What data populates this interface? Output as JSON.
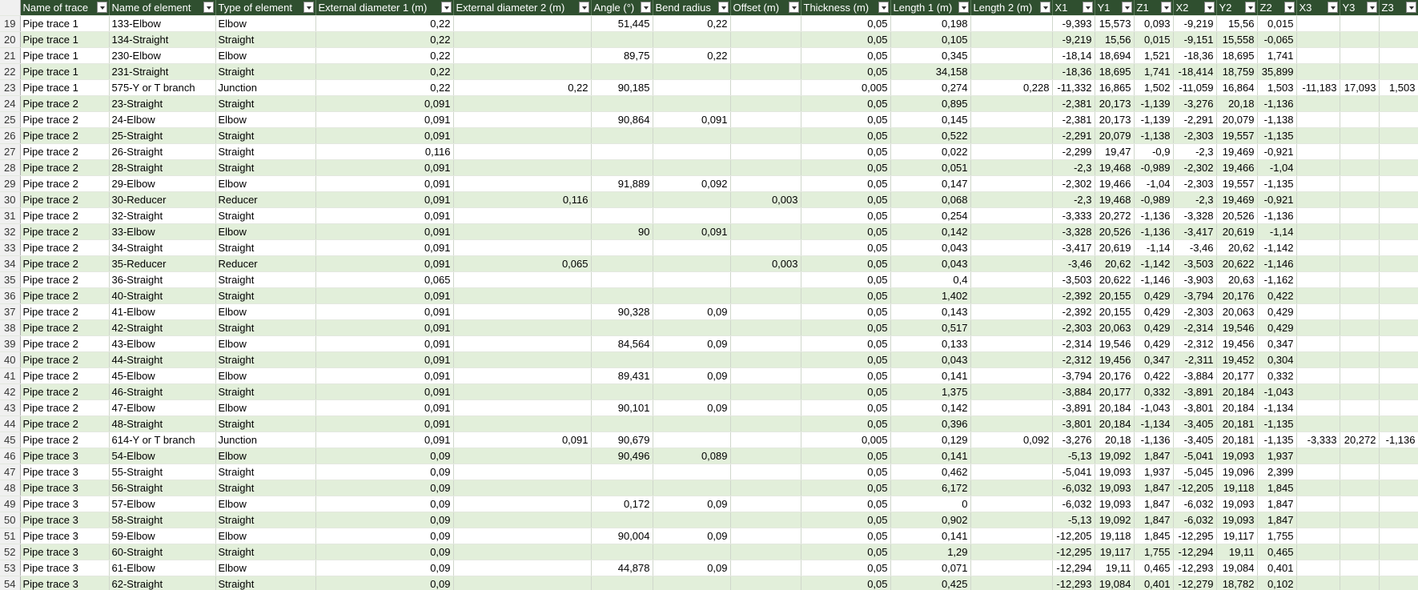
{
  "table": {
    "columns": [
      "Name of trace",
      "Name of element",
      "Type of element",
      "External diameter 1 (m)",
      "External diameter 2 (m)",
      "Angle (°)",
      "Bend radius",
      "Offset (m)",
      "Thickness (m)",
      "Length 1 (m)",
      "Length 2 (m)",
      "X1",
      "Y1",
      "Z1",
      "X2",
      "Y2",
      "Z2",
      "X3",
      "Y3",
      "Z3"
    ],
    "rows": [
      [
        "19",
        "Pipe trace 1",
        "133-Elbow",
        "Elbow",
        "0,22",
        null,
        "51,445",
        "0,22",
        null,
        "0,05",
        "0,198",
        null,
        "-9,393",
        "15,573",
        "0,093",
        "-9,219",
        "15,56",
        "0,015",
        null,
        null,
        null
      ],
      [
        "20",
        "Pipe trace 1",
        "134-Straight",
        "Straight",
        "0,22",
        null,
        null,
        null,
        null,
        "0,05",
        "0,105",
        null,
        "-9,219",
        "15,56",
        "0,015",
        "-9,151",
        "15,558",
        "-0,065",
        null,
        null,
        null
      ],
      [
        "21",
        "Pipe trace 1",
        "230-Elbow",
        "Elbow",
        "0,22",
        null,
        "89,75",
        "0,22",
        null,
        "0,05",
        "0,345",
        null,
        "-18,14",
        "18,694",
        "1,521",
        "-18,36",
        "18,695",
        "1,741",
        null,
        null,
        null
      ],
      [
        "22",
        "Pipe trace 1",
        "231-Straight",
        "Straight",
        "0,22",
        null,
        null,
        null,
        null,
        "0,05",
        "34,158",
        null,
        "-18,36",
        "18,695",
        "1,741",
        "-18,414",
        "18,759",
        "35,899",
        null,
        null,
        null
      ],
      [
        "23",
        "Pipe trace 1",
        "575-Y or T branch",
        "Junction",
        "0,22",
        "0,22",
        "90,185",
        null,
        null,
        "0,005",
        "0,274",
        "0,228",
        "-11,332",
        "16,865",
        "1,502",
        "-11,059",
        "16,864",
        "1,503",
        "-11,183",
        "17,093",
        "1,503"
      ],
      [
        "24",
        "Pipe trace 2",
        "23-Straight",
        "Straight",
        "0,091",
        null,
        null,
        null,
        null,
        "0,05",
        "0,895",
        null,
        "-2,381",
        "20,173",
        "-1,139",
        "-3,276",
        "20,18",
        "-1,136",
        null,
        null,
        null
      ],
      [
        "25",
        "Pipe trace 2",
        "24-Elbow",
        "Elbow",
        "0,091",
        null,
        "90,864",
        "0,091",
        null,
        "0,05",
        "0,145",
        null,
        "-2,381",
        "20,173",
        "-1,139",
        "-2,291",
        "20,079",
        "-1,138",
        null,
        null,
        null
      ],
      [
        "26",
        "Pipe trace 2",
        "25-Straight",
        "Straight",
        "0,091",
        null,
        null,
        null,
        null,
        "0,05",
        "0,522",
        null,
        "-2,291",
        "20,079",
        "-1,138",
        "-2,303",
        "19,557",
        "-1,135",
        null,
        null,
        null
      ],
      [
        "27",
        "Pipe trace 2",
        "26-Straight",
        "Straight",
        "0,116",
        null,
        null,
        null,
        null,
        "0,05",
        "0,022",
        null,
        "-2,299",
        "19,47",
        "-0,9",
        "-2,3",
        "19,469",
        "-0,921",
        null,
        null,
        null
      ],
      [
        "28",
        "Pipe trace 2",
        "28-Straight",
        "Straight",
        "0,091",
        null,
        null,
        null,
        null,
        "0,05",
        "0,051",
        null,
        "-2,3",
        "19,468",
        "-0,989",
        "-2,302",
        "19,466",
        "-1,04",
        null,
        null,
        null
      ],
      [
        "29",
        "Pipe trace 2",
        "29-Elbow",
        "Elbow",
        "0,091",
        null,
        "91,889",
        "0,092",
        null,
        "0,05",
        "0,147",
        null,
        "-2,302",
        "19,466",
        "-1,04",
        "-2,303",
        "19,557",
        "-1,135",
        null,
        null,
        null
      ],
      [
        "30",
        "Pipe trace 2",
        "30-Reducer",
        "Reducer",
        "0,091",
        "0,116",
        null,
        null,
        "0,003",
        "0,05",
        "0,068",
        null,
        "-2,3",
        "19,468",
        "-0,989",
        "-2,3",
        "19,469",
        "-0,921",
        null,
        null,
        null
      ],
      [
        "31",
        "Pipe trace 2",
        "32-Straight",
        "Straight",
        "0,091",
        null,
        null,
        null,
        null,
        "0,05",
        "0,254",
        null,
        "-3,333",
        "20,272",
        "-1,136",
        "-3,328",
        "20,526",
        "-1,136",
        null,
        null,
        null
      ],
      [
        "32",
        "Pipe trace 2",
        "33-Elbow",
        "Elbow",
        "0,091",
        null,
        "90",
        "0,091",
        null,
        "0,05",
        "0,142",
        null,
        "-3,328",
        "20,526",
        "-1,136",
        "-3,417",
        "20,619",
        "-1,14",
        null,
        null,
        null
      ],
      [
        "33",
        "Pipe trace 2",
        "34-Straight",
        "Straight",
        "0,091",
        null,
        null,
        null,
        null,
        "0,05",
        "0,043",
        null,
        "-3,417",
        "20,619",
        "-1,14",
        "-3,46",
        "20,62",
        "-1,142",
        null,
        null,
        null
      ],
      [
        "34",
        "Pipe trace 2",
        "35-Reducer",
        "Reducer",
        "0,091",
        "0,065",
        null,
        null,
        "0,003",
        "0,05",
        "0,043",
        null,
        "-3,46",
        "20,62",
        "-1,142",
        "-3,503",
        "20,622",
        "-1,146",
        null,
        null,
        null
      ],
      [
        "35",
        "Pipe trace 2",
        "36-Straight",
        "Straight",
        "0,065",
        null,
        null,
        null,
        null,
        "0,05",
        "0,4",
        null,
        "-3,503",
        "20,622",
        "-1,146",
        "-3,903",
        "20,63",
        "-1,162",
        null,
        null,
        null
      ],
      [
        "36",
        "Pipe trace 2",
        "40-Straight",
        "Straight",
        "0,091",
        null,
        null,
        null,
        null,
        "0,05",
        "1,402",
        null,
        "-2,392",
        "20,155",
        "0,429",
        "-3,794",
        "20,176",
        "0,422",
        null,
        null,
        null
      ],
      [
        "37",
        "Pipe trace 2",
        "41-Elbow",
        "Elbow",
        "0,091",
        null,
        "90,328",
        "0,09",
        null,
        "0,05",
        "0,143",
        null,
        "-2,392",
        "20,155",
        "0,429",
        "-2,303",
        "20,063",
        "0,429",
        null,
        null,
        null
      ],
      [
        "38",
        "Pipe trace 2",
        "42-Straight",
        "Straight",
        "0,091",
        null,
        null,
        null,
        null,
        "0,05",
        "0,517",
        null,
        "-2,303",
        "20,063",
        "0,429",
        "-2,314",
        "19,546",
        "0,429",
        null,
        null,
        null
      ],
      [
        "39",
        "Pipe trace 2",
        "43-Elbow",
        "Elbow",
        "0,091",
        null,
        "84,564",
        "0,09",
        null,
        "0,05",
        "0,133",
        null,
        "-2,314",
        "19,546",
        "0,429",
        "-2,312",
        "19,456",
        "0,347",
        null,
        null,
        null
      ],
      [
        "40",
        "Pipe trace 2",
        "44-Straight",
        "Straight",
        "0,091",
        null,
        null,
        null,
        null,
        "0,05",
        "0,043",
        null,
        "-2,312",
        "19,456",
        "0,347",
        "-2,311",
        "19,452",
        "0,304",
        null,
        null,
        null
      ],
      [
        "41",
        "Pipe trace 2",
        "45-Elbow",
        "Elbow",
        "0,091",
        null,
        "89,431",
        "0,09",
        null,
        "0,05",
        "0,141",
        null,
        "-3,794",
        "20,176",
        "0,422",
        "-3,884",
        "20,177",
        "0,332",
        null,
        null,
        null
      ],
      [
        "42",
        "Pipe trace 2",
        "46-Straight",
        "Straight",
        "0,091",
        null,
        null,
        null,
        null,
        "0,05",
        "1,375",
        null,
        "-3,884",
        "20,177",
        "0,332",
        "-3,891",
        "20,184",
        "-1,043",
        null,
        null,
        null
      ],
      [
        "43",
        "Pipe trace 2",
        "47-Elbow",
        "Elbow",
        "0,091",
        null,
        "90,101",
        "0,09",
        null,
        "0,05",
        "0,142",
        null,
        "-3,891",
        "20,184",
        "-1,043",
        "-3,801",
        "20,184",
        "-1,134",
        null,
        null,
        null
      ],
      [
        "44",
        "Pipe trace 2",
        "48-Straight",
        "Straight",
        "0,091",
        null,
        null,
        null,
        null,
        "0,05",
        "0,396",
        null,
        "-3,801",
        "20,184",
        "-1,134",
        "-3,405",
        "20,181",
        "-1,135",
        null,
        null,
        null
      ],
      [
        "45",
        "Pipe trace 2",
        "614-Y or T branch",
        "Junction",
        "0,091",
        "0,091",
        "90,679",
        null,
        null,
        "0,005",
        "0,129",
        "0,092",
        "-3,276",
        "20,18",
        "-1,136",
        "-3,405",
        "20,181",
        "-1,135",
        "-3,333",
        "20,272",
        "-1,136"
      ],
      [
        "46",
        "Pipe trace 3",
        "54-Elbow",
        "Elbow",
        "0,09",
        null,
        "90,496",
        "0,089",
        null,
        "0,05",
        "0,141",
        null,
        "-5,13",
        "19,092",
        "1,847",
        "-5,041",
        "19,093",
        "1,937",
        null,
        null,
        null
      ],
      [
        "47",
        "Pipe trace 3",
        "55-Straight",
        "Straight",
        "0,09",
        null,
        null,
        null,
        null,
        "0,05",
        "0,462",
        null,
        "-5,041",
        "19,093",
        "1,937",
        "-5,045",
        "19,096",
        "2,399",
        null,
        null,
        null
      ],
      [
        "48",
        "Pipe trace 3",
        "56-Straight",
        "Straight",
        "0,09",
        null,
        null,
        null,
        null,
        "0,05",
        "6,172",
        null,
        "-6,032",
        "19,093",
        "1,847",
        "-12,205",
        "19,118",
        "1,845",
        null,
        null,
        null
      ],
      [
        "49",
        "Pipe trace 3",
        "57-Elbow",
        "Elbow",
        "0,09",
        null,
        "0,172",
        "0,09",
        null,
        "0,05",
        "0",
        null,
        "-6,032",
        "19,093",
        "1,847",
        "-6,032",
        "19,093",
        "1,847",
        null,
        null,
        null
      ],
      [
        "50",
        "Pipe trace 3",
        "58-Straight",
        "Straight",
        "0,09",
        null,
        null,
        null,
        null,
        "0,05",
        "0,902",
        null,
        "-5,13",
        "19,092",
        "1,847",
        "-6,032",
        "19,093",
        "1,847",
        null,
        null,
        null
      ],
      [
        "51",
        "Pipe trace 3",
        "59-Elbow",
        "Elbow",
        "0,09",
        null,
        "90,004",
        "0,09",
        null,
        "0,05",
        "0,141",
        null,
        "-12,205",
        "19,118",
        "1,845",
        "-12,295",
        "19,117",
        "1,755",
        null,
        null,
        null
      ],
      [
        "52",
        "Pipe trace 3",
        "60-Straight",
        "Straight",
        "0,09",
        null,
        null,
        null,
        null,
        "0,05",
        "1,29",
        null,
        "-12,295",
        "19,117",
        "1,755",
        "-12,294",
        "19,11",
        "0,465",
        null,
        null,
        null
      ],
      [
        "53",
        "Pipe trace 3",
        "61-Elbow",
        "Elbow",
        "0,09",
        null,
        "44,878",
        "0,09",
        null,
        "0,05",
        "0,071",
        null,
        "-12,294",
        "19,11",
        "0,465",
        "-12,293",
        "19,084",
        "0,401",
        null,
        null,
        null
      ],
      [
        "54",
        "Pipe trace 3",
        "62-Straight",
        "Straight",
        "0,09",
        null,
        null,
        null,
        null,
        "0,05",
        "0,425",
        null,
        "-12,293",
        "19,084",
        "0,401",
        "-12,279",
        "18,782",
        "0,102",
        null,
        null,
        null
      ]
    ]
  }
}
